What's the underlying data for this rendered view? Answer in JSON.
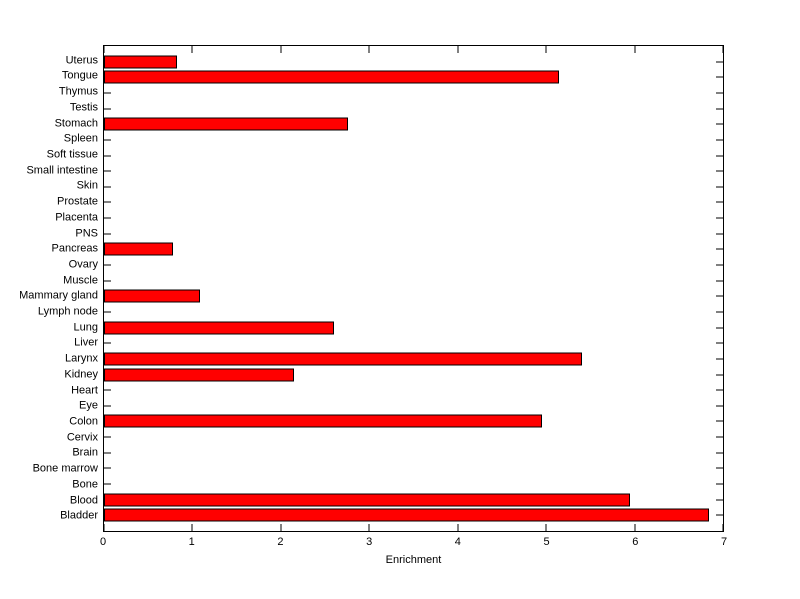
{
  "figure": {
    "background_color": "#ffffff",
    "axis_color": "#000000",
    "text_color": "#000000"
  },
  "chart_data": {
    "type": "bar",
    "orientation": "horizontal",
    "title": "",
    "xlabel": "Enrichment",
    "ylabel": "",
    "xlim": [
      0,
      7
    ],
    "xticks": [
      "0",
      "1",
      "2",
      "3",
      "4",
      "5",
      "6",
      "7"
    ],
    "grid": false,
    "legend": null,
    "bar_color": "#ff0000",
    "bar_edge_color": "#000000",
    "categories": [
      "Uterus",
      "Tongue",
      "Thymus",
      "Testis",
      "Stomach",
      "Spleen",
      "Soft tissue",
      "Small intestine",
      "Skin",
      "Prostate",
      "Placenta",
      "PNS",
      "Pancreas",
      "Ovary",
      "Muscle",
      "Mammary gland",
      "Lymph node",
      "Lung",
      "Liver",
      "Larynx",
      "Kidney",
      "Heart",
      "Eye",
      "Colon",
      "Cervix",
      "Brain",
      "Bone marrow",
      "Bone",
      "Blood",
      "Bladder"
    ],
    "values": [
      0.83,
      5.14,
      0,
      0,
      2.76,
      0,
      0,
      0,
      0,
      0,
      0,
      0,
      0.78,
      0,
      0,
      1.08,
      0,
      2.6,
      0,
      5.4,
      2.15,
      0,
      0,
      4.95,
      0,
      0,
      0,
      0,
      5.95,
      6.84
    ]
  }
}
